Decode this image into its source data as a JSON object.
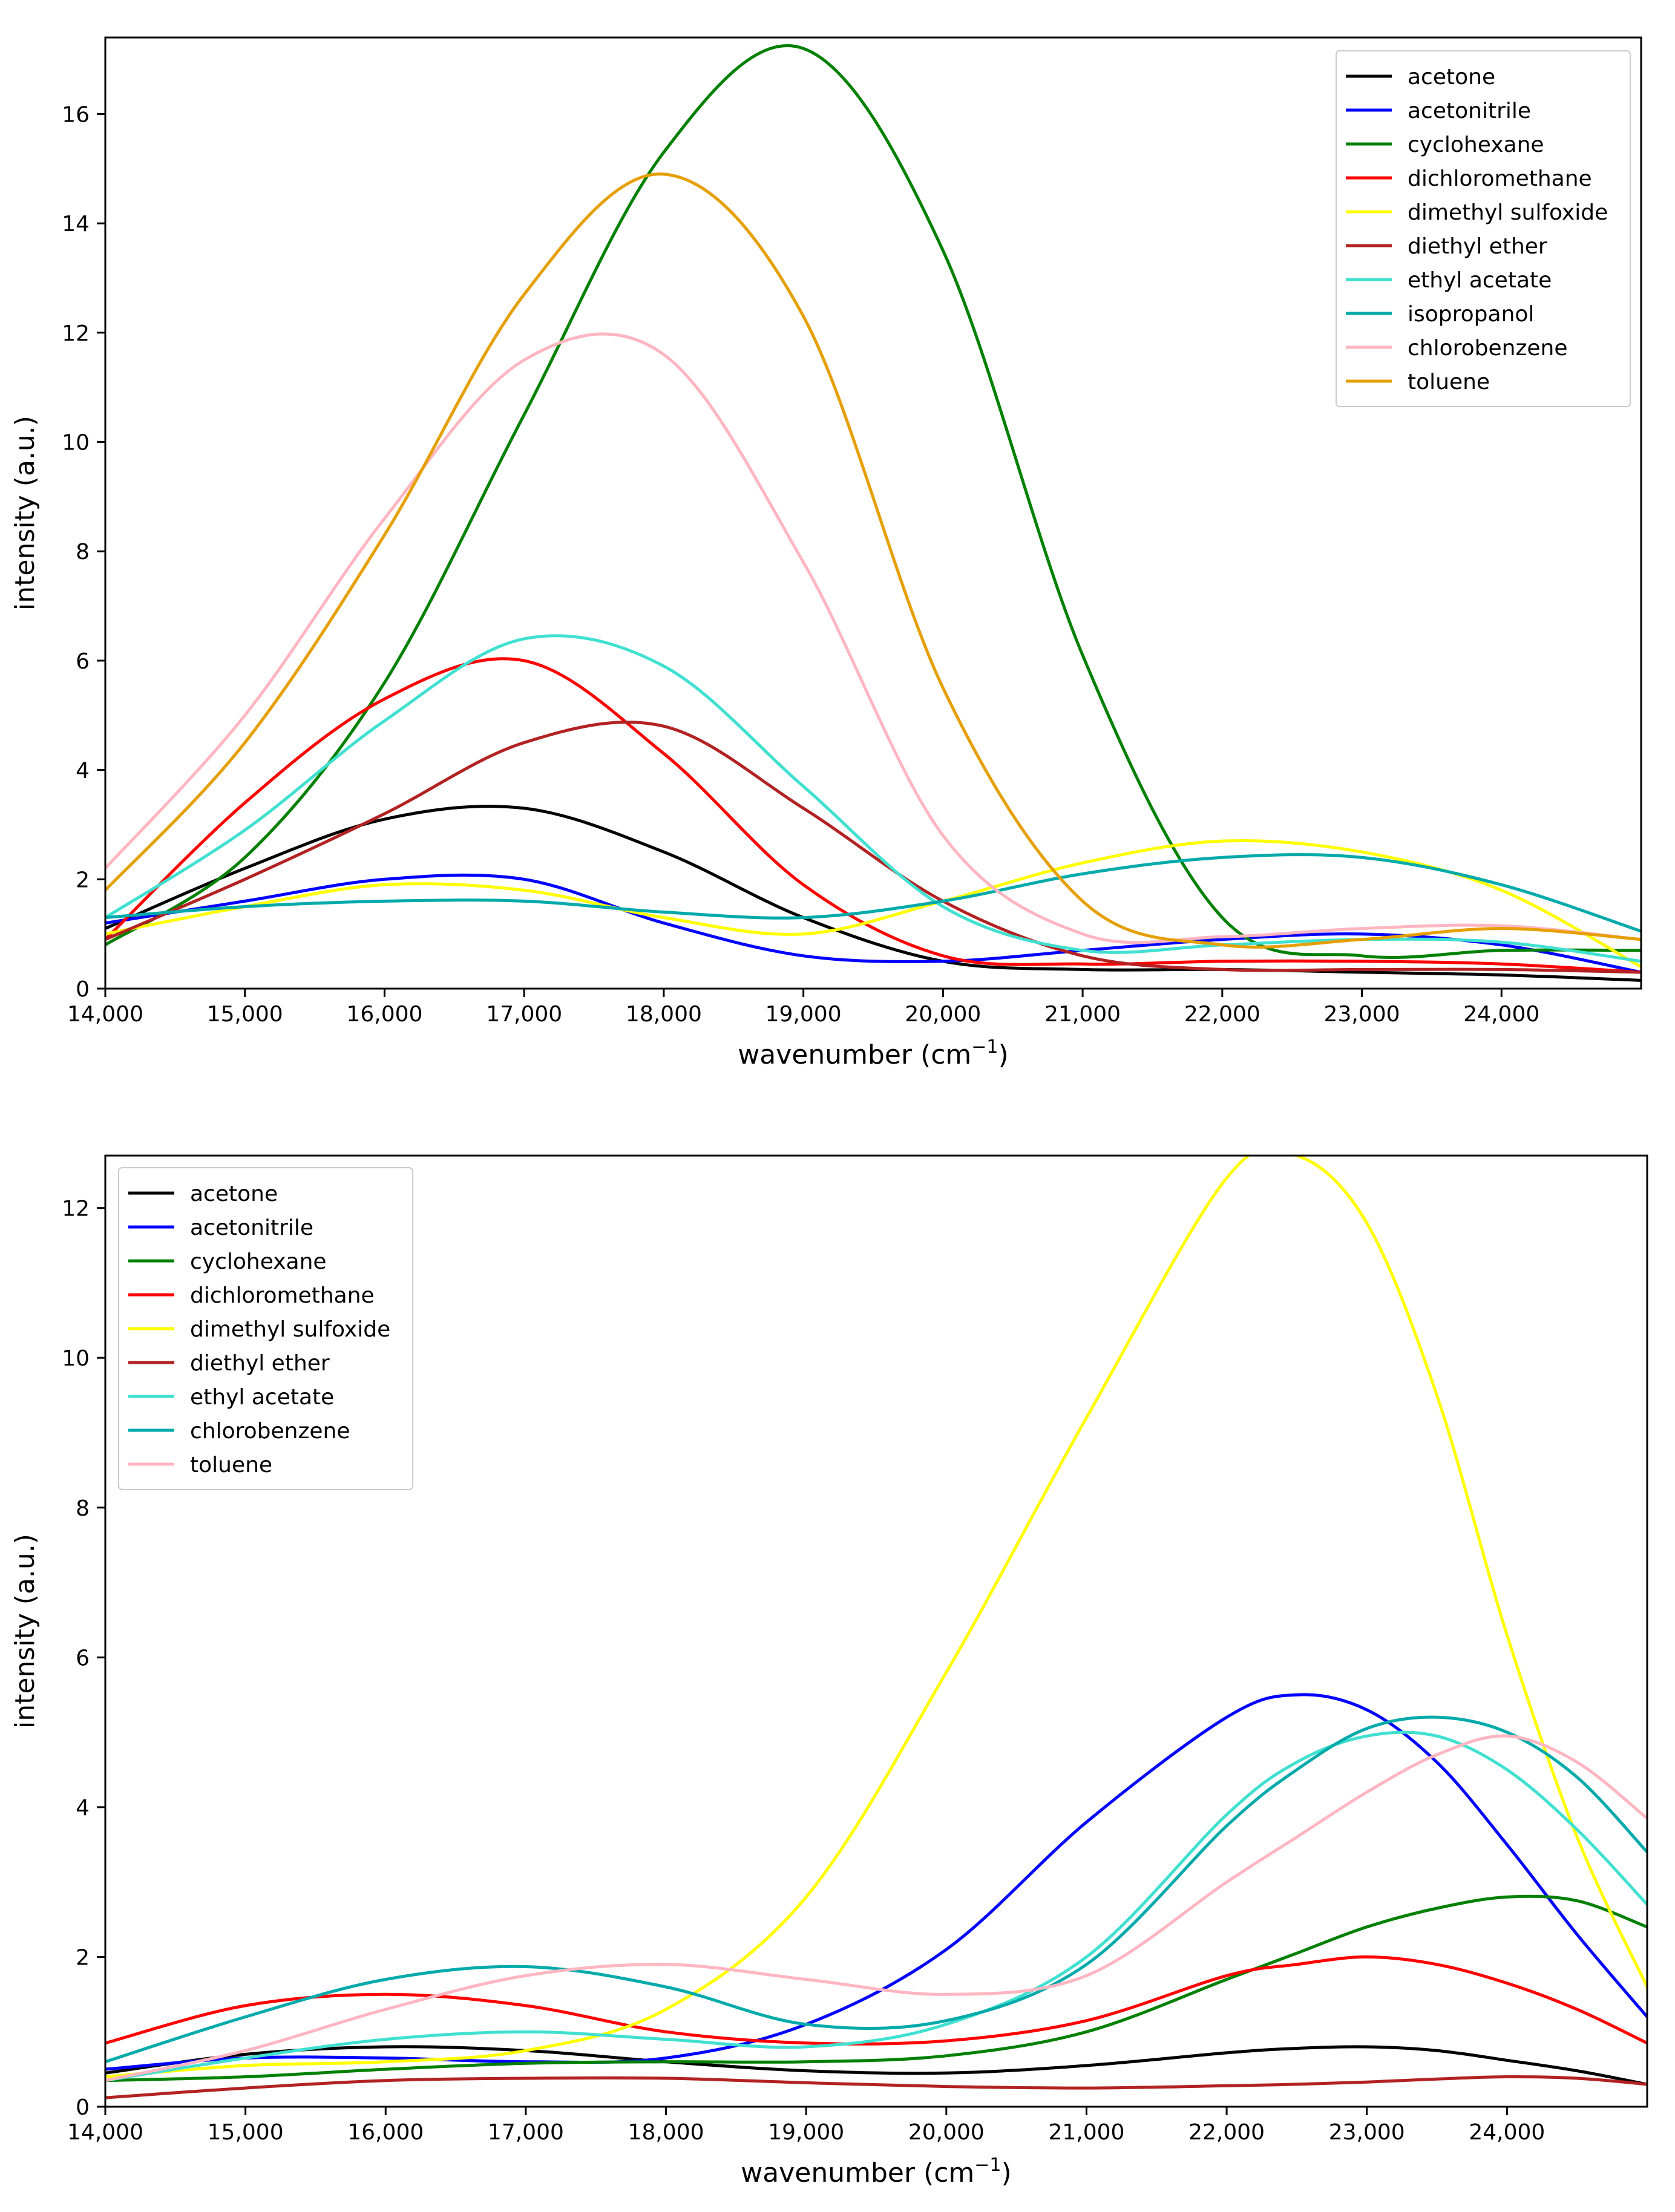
{
  "colors": {
    "acetone": "#000000",
    "acetonitrile": "#0000ff",
    "cyclohexane": "#008000",
    "dichloromethane": "#ff0000",
    "dimethyl_sulfoxide": "#ffff00",
    "diethyl_ether": "#b22222",
    "ethyl_acetate": "#40e0d0",
    "isopropanol": "#00aaaa",
    "chlorobenzene_top": "#ffb6c1",
    "toluene_top": "#e69f00",
    "chlorobenzene_bottom": "#00aaaa",
    "toluene_bottom": "#ffb6c1"
  },
  "chart_data": [
    {
      "type": "line",
      "title": "",
      "xlabel": "wavenumber (cm",
      "xlabel_sup": "−1",
      "xlabel_end": ")",
      "ylabel": "intensity (a.u.)",
      "xlim": [
        14000,
        25000
      ],
      "ylim": [
        0,
        17.4
      ],
      "xticks": [
        14000,
        15000,
        16000,
        17000,
        18000,
        19000,
        20000,
        21000,
        22000,
        23000,
        24000
      ],
      "xtick_labels": [
        "14,000",
        "15,000",
        "16,000",
        "17,000",
        "18,000",
        "19,000",
        "20,000",
        "21,000",
        "22,000",
        "23,000",
        "24,000"
      ],
      "yticks": [
        0,
        2,
        4,
        6,
        8,
        10,
        12,
        14,
        16
      ],
      "ytick_labels": [
        "0",
        "2",
        "4",
        "6",
        "8",
        "10",
        "12",
        "14",
        "16"
      ],
      "legend_position": "top-right",
      "x": [
        14000,
        15000,
        16000,
        17000,
        18000,
        19000,
        20000,
        21000,
        22000,
        23000,
        24000,
        25000
      ],
      "series": [
        {
          "name": "acetone",
          "color_key": "acetone",
          "values": [
            1.1,
            2.2,
            3.1,
            3.3,
            2.5,
            1.3,
            0.5,
            0.35,
            0.35,
            0.3,
            0.25,
            0.15
          ]
        },
        {
          "name": "acetonitrile",
          "color_key": "acetonitrile",
          "values": [
            1.2,
            1.6,
            2.0,
            2.0,
            1.2,
            0.6,
            0.5,
            0.7,
            0.9,
            1.0,
            0.8,
            0.3
          ]
        },
        {
          "name": "cyclohexane",
          "color_key": "cyclohexane",
          "values": [
            0.8,
            2.4,
            5.6,
            10.5,
            15.3,
            17.2,
            13.5,
            6.1,
            1.3,
            0.6,
            0.7,
            0.7
          ]
        },
        {
          "name": "dichloromethane",
          "color_key": "dichloromethane",
          "values": [
            0.9,
            3.4,
            5.3,
            6.0,
            4.3,
            1.9,
            0.6,
            0.45,
            0.5,
            0.5,
            0.45,
            0.3
          ]
        },
        {
          "name": "dimethyl sulfoxide",
          "color_key": "dimethyl_sulfoxide",
          "values": [
            1.0,
            1.5,
            1.9,
            1.8,
            1.3,
            1.0,
            1.6,
            2.3,
            2.7,
            2.5,
            1.8,
            0.4
          ]
        },
        {
          "name": "diethyl ether",
          "color_key": "diethyl_ether",
          "values": [
            0.9,
            2.0,
            3.2,
            4.5,
            4.8,
            3.3,
            1.6,
            0.6,
            0.35,
            0.35,
            0.35,
            0.3
          ]
        },
        {
          "name": "ethyl acetate",
          "color_key": "ethyl_acetate",
          "values": [
            1.3,
            2.9,
            4.9,
            6.4,
            5.9,
            3.7,
            1.5,
            0.7,
            0.8,
            0.9,
            0.85,
            0.5
          ]
        },
        {
          "name": "isopropanol",
          "color_key": "isopropanol",
          "values": [
            1.3,
            1.5,
            1.6,
            1.6,
            1.4,
            1.3,
            1.6,
            2.1,
            2.4,
            2.4,
            1.9,
            1.05
          ]
        },
        {
          "name": "chlorobenzene",
          "color_key": "chlorobenzene_top",
          "values": [
            2.2,
            5.0,
            8.6,
            11.5,
            11.6,
            7.8,
            2.8,
            1.0,
            0.95,
            1.1,
            1.15,
            0.9
          ]
        },
        {
          "name": "toluene",
          "color_key": "toluene_top",
          "values": [
            1.8,
            4.5,
            8.3,
            12.7,
            14.9,
            12.3,
            5.5,
            1.6,
            0.8,
            0.9,
            1.1,
            0.9
          ]
        }
      ]
    },
    {
      "type": "line",
      "title": "",
      "xlabel": "wavenumber (cm",
      "xlabel_sup": "−1",
      "xlabel_end": ")",
      "ylabel": "intensity (a.u.)",
      "xlim": [
        14000,
        25000
      ],
      "ylim": [
        0,
        12.7
      ],
      "xticks": [
        14000,
        15000,
        16000,
        17000,
        18000,
        19000,
        20000,
        21000,
        22000,
        23000,
        24000
      ],
      "xtick_labels": [
        "14,000",
        "15,000",
        "16,000",
        "17,000",
        "18,000",
        "19,000",
        "20,000",
        "21,000",
        "22,000",
        "23,000",
        "24,000"
      ],
      "yticks": [
        0,
        2,
        4,
        6,
        8,
        10,
        12
      ],
      "ytick_labels": [
        "0",
        "2",
        "4",
        "6",
        "8",
        "10",
        "12"
      ],
      "legend_position": "top-left",
      "x": [
        14000,
        15000,
        16000,
        17000,
        18000,
        19000,
        20000,
        21000,
        22000,
        22500,
        23000,
        23500,
        24000,
        24500,
        25000
      ],
      "series": [
        {
          "name": "acetone",
          "color_key": "acetone",
          "values": [
            0.45,
            0.7,
            0.8,
            0.75,
            0.6,
            0.48,
            0.45,
            0.55,
            0.72,
            0.78,
            0.8,
            0.75,
            0.62,
            0.48,
            0.3
          ]
        },
        {
          "name": "acetonitrile",
          "color_key": "acetonitrile",
          "values": [
            0.5,
            0.65,
            0.65,
            0.6,
            0.65,
            1.1,
            2.1,
            3.8,
            5.2,
            5.5,
            5.3,
            4.6,
            3.5,
            2.3,
            1.2
          ]
        },
        {
          "name": "cyclohexane",
          "color_key": "cyclohexane",
          "values": [
            0.35,
            0.4,
            0.5,
            0.58,
            0.6,
            0.6,
            0.68,
            1.0,
            1.7,
            2.05,
            2.4,
            2.65,
            2.8,
            2.75,
            2.4
          ]
        },
        {
          "name": "dichloromethane",
          "color_key": "dichloromethane",
          "values": [
            0.85,
            1.35,
            1.5,
            1.35,
            1.0,
            0.85,
            0.88,
            1.15,
            1.75,
            1.9,
            2.0,
            1.9,
            1.65,
            1.3,
            0.85
          ]
        },
        {
          "name": "dimethyl sulfoxide",
          "color_key": "dimethyl_sulfoxide",
          "values": [
            0.4,
            0.55,
            0.6,
            0.75,
            1.3,
            2.8,
            5.8,
            9.2,
            12.4,
            12.7,
            11.8,
            9.5,
            6.3,
            3.6,
            1.6
          ]
        },
        {
          "name": "diethyl ether",
          "color_key": "diethyl_ether",
          "values": [
            0.12,
            0.25,
            0.35,
            0.38,
            0.38,
            0.32,
            0.27,
            0.25,
            0.28,
            0.3,
            0.33,
            0.37,
            0.4,
            0.38,
            0.3
          ]
        },
        {
          "name": "ethyl acetate",
          "color_key": "ethyl_acetate",
          "values": [
            0.35,
            0.65,
            0.9,
            1.0,
            0.9,
            0.8,
            1.1,
            2.0,
            3.9,
            4.6,
            4.95,
            4.95,
            4.5,
            3.7,
            2.7
          ]
        },
        {
          "name": "chlorobenzene",
          "color_key": "chlorobenzene_bottom",
          "values": [
            0.6,
            1.2,
            1.7,
            1.87,
            1.6,
            1.1,
            1.15,
            1.9,
            3.75,
            4.5,
            5.05,
            5.2,
            5.0,
            4.4,
            3.4
          ]
        },
        {
          "name": "toluene",
          "color_key": "toluene_bottom",
          "values": [
            0.35,
            0.75,
            1.3,
            1.75,
            1.9,
            1.7,
            1.5,
            1.75,
            3.0,
            3.6,
            4.2,
            4.7,
            4.95,
            4.6,
            3.85
          ]
        }
      ]
    }
  ]
}
